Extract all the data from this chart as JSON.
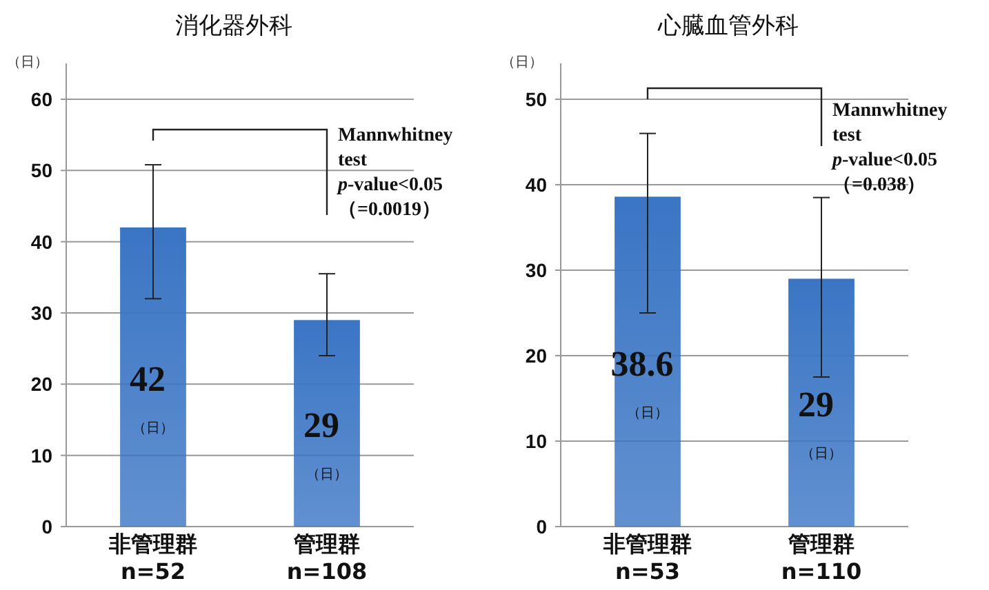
{
  "chart_data": [
    {
      "type": "bar",
      "title": "消化器外科",
      "ylabel": "（日）",
      "categories": [
        "非管理群\nn=52",
        "管理群\nn=108"
      ],
      "values": [
        42,
        29
      ],
      "value_labels": [
        "42",
        "29"
      ],
      "errors": [
        [
          32,
          50.8
        ],
        [
          24,
          35.5
        ]
      ],
      "color": "#3a75c4",
      "ylim": [
        0,
        60
      ],
      "yticks": [
        0,
        10,
        20,
        30,
        40,
        50,
        60
      ],
      "grid": "y",
      "annotations": [
        "Mannwhitney\ntest\np-value<0.05\n（=0.0019）",
        "（日）",
        "（日）"
      ]
    },
    {
      "type": "bar",
      "title": "心臓血管外科",
      "ylabel": "（日）",
      "categories": [
        "非管理群\nn=53",
        "管理群\nn=110"
      ],
      "values": [
        38.6,
        29
      ],
      "value_labels": [
        "38.6",
        "29"
      ],
      "errors": [
        [
          25,
          46
        ],
        [
          17.5,
          38.5
        ]
      ],
      "color": "#3a75c4",
      "ylim": [
        0,
        50
      ],
      "yticks": [
        0,
        10,
        20,
        30,
        40,
        50
      ],
      "grid": "y",
      "annotations": [
        "Mannwhitney\ntest\np-value<0.05\n（=0.038）",
        "（日）",
        "（日）"
      ]
    }
  ]
}
